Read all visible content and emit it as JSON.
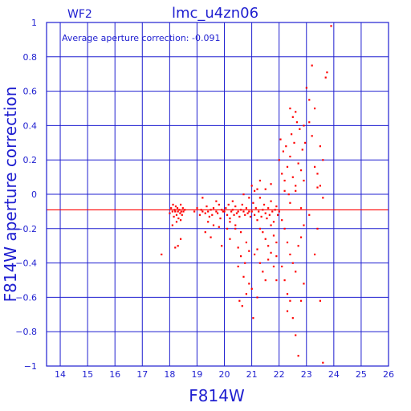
{
  "chart_data": {
    "type": "scatter",
    "title": "lmc_u4zn06",
    "panel_label": "WF2",
    "annotation": "Average aperture correction: -0.091",
    "xlabel": "F814W",
    "ylabel": "F814W aperture correction",
    "xlim": [
      13.5,
      26
    ],
    "ylim": [
      -1,
      1
    ],
    "x_ticks": [
      14,
      15,
      16,
      17,
      18,
      19,
      20,
      21,
      22,
      23,
      24,
      25,
      26
    ],
    "y_ticks": [
      -1,
      -0.8,
      -0.6,
      -0.4,
      -0.2,
      0,
      0.2,
      0.4,
      0.6,
      0.8,
      1
    ],
    "x_tick_labels": [
      "14",
      "15",
      "16",
      "17",
      "18",
      "19",
      "20",
      "21",
      "22",
      "23",
      "24",
      "25",
      "26"
    ],
    "y_tick_labels": [
      "−1",
      "−0.8",
      "−0.6",
      "−0.4",
      "−0.2",
      "0",
      "0.2",
      "0.4",
      "0.6",
      "0.8",
      "1"
    ],
    "average_correction": -0.091,
    "grid": true,
    "colors": {
      "axes": "#1f1fd0",
      "points": "#ff0000",
      "average_line": "#ff0000"
    },
    "series": [
      {
        "points": [
          [
            17.7,
            -0.35
          ],
          [
            18.0,
            -0.11
          ],
          [
            18.05,
            -0.08
          ],
          [
            18.1,
            -0.1
          ],
          [
            18.12,
            -0.06
          ],
          [
            18.15,
            -0.13
          ],
          [
            18.18,
            -0.09
          ],
          [
            18.2,
            -0.1
          ],
          [
            18.22,
            -0.07
          ],
          [
            18.25,
            -0.12
          ],
          [
            18.28,
            -0.08
          ],
          [
            18.3,
            -0.1
          ],
          [
            18.32,
            -0.14
          ],
          [
            18.35,
            -0.09
          ],
          [
            18.38,
            -0.11
          ],
          [
            18.4,
            -0.06
          ],
          [
            18.42,
            -0.1
          ],
          [
            18.45,
            -0.12
          ],
          [
            18.48,
            -0.08
          ],
          [
            18.5,
            -0.1
          ],
          [
            18.55,
            -0.09
          ],
          [
            18.1,
            -0.18
          ],
          [
            18.25,
            -0.16
          ],
          [
            18.4,
            -0.15
          ],
          [
            18.2,
            -0.31
          ],
          [
            18.3,
            -0.3
          ],
          [
            18.4,
            -0.26
          ],
          [
            18.9,
            -0.1
          ],
          [
            19.0,
            -0.08
          ],
          [
            19.1,
            -0.12
          ],
          [
            19.15,
            -0.09
          ],
          [
            19.2,
            -0.1
          ],
          [
            19.3,
            -0.11
          ],
          [
            19.35,
            -0.07
          ],
          [
            19.4,
            -0.1
          ],
          [
            19.45,
            -0.13
          ],
          [
            19.5,
            -0.09
          ],
          [
            19.55,
            -0.12
          ],
          [
            19.6,
            -0.08
          ],
          [
            19.7,
            -0.1
          ],
          [
            19.75,
            -0.11
          ],
          [
            19.8,
            -0.06
          ],
          [
            19.85,
            -0.14
          ],
          [
            19.9,
            -0.09
          ],
          [
            19.95,
            -0.1
          ],
          [
            19.2,
            -0.02
          ],
          [
            19.4,
            -0.16
          ],
          [
            19.6,
            -0.18
          ],
          [
            19.7,
            -0.04
          ],
          [
            19.8,
            -0.19
          ],
          [
            19.9,
            -0.3
          ],
          [
            19.3,
            -0.22
          ],
          [
            19.5,
            -0.25
          ],
          [
            20.0,
            -0.1
          ],
          [
            20.05,
            -0.08
          ],
          [
            20.1,
            -0.12
          ],
          [
            20.15,
            -0.06
          ],
          [
            20.2,
            -0.14
          ],
          [
            20.25,
            -0.1
          ],
          [
            20.3,
            -0.09
          ],
          [
            20.35,
            -0.12
          ],
          [
            20.4,
            -0.07
          ],
          [
            20.45,
            -0.11
          ],
          [
            20.5,
            -0.1
          ],
          [
            20.55,
            -0.13
          ],
          [
            20.6,
            -0.09
          ],
          [
            20.65,
            -0.06
          ],
          [
            20.7,
            -0.1
          ],
          [
            20.75,
            -0.12
          ],
          [
            20.8,
            -0.08
          ],
          [
            20.85,
            -0.11
          ],
          [
            20.9,
            -0.1
          ],
          [
            20.95,
            -0.13
          ],
          [
            20.1,
            -0.2
          ],
          [
            20.2,
            -0.26
          ],
          [
            20.3,
            -0.04
          ],
          [
            20.4,
            -0.2
          ],
          [
            20.5,
            -0.31
          ],
          [
            20.6,
            -0.22
          ],
          [
            20.7,
            0.0
          ],
          [
            20.8,
            -0.28
          ],
          [
            20.9,
            -0.02
          ],
          [
            20.6,
            -0.36
          ],
          [
            20.5,
            -0.42
          ],
          [
            20.7,
            -0.48
          ],
          [
            20.8,
            -0.58
          ],
          [
            20.55,
            -0.62
          ],
          [
            20.65,
            -0.65
          ],
          [
            20.9,
            -0.52
          ],
          [
            20.75,
            -0.4
          ],
          [
            20.4,
            -0.18
          ],
          [
            20.2,
            -0.16
          ],
          [
            20.9,
            -0.33
          ],
          [
            21.0,
            -0.1
          ],
          [
            21.05,
            -0.05
          ],
          [
            21.1,
            -0.12
          ],
          [
            21.15,
            -0.08
          ],
          [
            21.2,
            -0.15
          ],
          [
            21.25,
            -0.1
          ],
          [
            21.3,
            -0.02
          ],
          [
            21.35,
            -0.13
          ],
          [
            21.4,
            -0.09
          ],
          [
            21.45,
            -0.06
          ],
          [
            21.5,
            -0.11
          ],
          [
            21.55,
            -0.14
          ],
          [
            21.6,
            -0.08
          ],
          [
            21.65,
            -0.12
          ],
          [
            21.7,
            -0.04
          ],
          [
            21.75,
            -0.1
          ],
          [
            21.8,
            -0.16
          ],
          [
            21.85,
            -0.09
          ],
          [
            21.9,
            -0.07
          ],
          [
            21.95,
            -0.12
          ],
          [
            21.0,
            0.05
          ],
          [
            21.1,
            0.02
          ],
          [
            21.2,
            0.03
          ],
          [
            21.3,
            -0.2
          ],
          [
            21.4,
            -0.22
          ],
          [
            21.5,
            -0.26
          ],
          [
            21.6,
            -0.3
          ],
          [
            21.7,
            -0.18
          ],
          [
            21.8,
            -0.24
          ],
          [
            21.9,
            -0.28
          ],
          [
            21.1,
            -0.35
          ],
          [
            21.2,
            -0.32
          ],
          [
            21.3,
            -0.4
          ],
          [
            21.4,
            -0.45
          ],
          [
            21.5,
            -0.5
          ],
          [
            21.0,
            -0.55
          ],
          [
            21.05,
            -0.72
          ],
          [
            21.2,
            -0.6
          ],
          [
            21.6,
            -0.38
          ],
          [
            21.7,
            -0.34
          ],
          [
            21.8,
            -0.42
          ],
          [
            21.9,
            -0.5
          ],
          [
            21.3,
            0.08
          ],
          [
            21.5,
            0.03
          ],
          [
            21.7,
            0.06
          ],
          [
            21.9,
            -0.36
          ],
          [
            22.0,
            0.2
          ],
          [
            22.05,
            0.32
          ],
          [
            22.1,
            0.12
          ],
          [
            22.15,
            0.25
          ],
          [
            22.2,
            0.08
          ],
          [
            22.25,
            0.28
          ],
          [
            22.3,
            0.16
          ],
          [
            22.35,
            0.0
          ],
          [
            22.4,
            0.22
          ],
          [
            22.45,
            0.35
          ],
          [
            22.5,
            0.1
          ],
          [
            22.55,
            0.3
          ],
          [
            22.6,
            0.05
          ],
          [
            22.65,
            0.42
          ],
          [
            22.7,
            0.18
          ],
          [
            22.75,
            0.38
          ],
          [
            22.8,
            0.14
          ],
          [
            22.85,
            0.26
          ],
          [
            22.9,
            0.08
          ],
          [
            22.95,
            0.3
          ],
          [
            22.0,
            -0.1
          ],
          [
            22.1,
            -0.15
          ],
          [
            22.2,
            -0.2
          ],
          [
            22.3,
            -0.28
          ],
          [
            22.4,
            -0.35
          ],
          [
            22.5,
            -0.4
          ],
          [
            22.6,
            -0.45
          ],
          [
            22.7,
            -0.3
          ],
          [
            22.8,
            -0.25
          ],
          [
            22.9,
            -0.18
          ],
          [
            22.1,
            -0.42
          ],
          [
            22.2,
            -0.5
          ],
          [
            22.3,
            -0.58
          ],
          [
            22.4,
            -0.62
          ],
          [
            22.5,
            -0.72
          ],
          [
            22.6,
            -0.82
          ],
          [
            22.7,
            -0.94
          ],
          [
            22.8,
            -0.62
          ],
          [
            22.9,
            -0.52
          ],
          [
            22.3,
            -0.68
          ],
          [
            22.2,
            0.02
          ],
          [
            22.4,
            -0.05
          ],
          [
            22.6,
            0.02
          ],
          [
            22.8,
            -0.08
          ],
          [
            22.5,
            0.45
          ],
          [
            22.9,
            0.4
          ],
          [
            22.4,
            0.5
          ],
          [
            22.6,
            0.48
          ],
          [
            23.0,
            0.62
          ],
          [
            23.1,
            0.55
          ],
          [
            23.2,
            0.34
          ],
          [
            23.3,
            0.16
          ],
          [
            23.4,
            0.12
          ],
          [
            23.5,
            0.05
          ],
          [
            23.1,
            0.42
          ],
          [
            23.3,
            0.5
          ],
          [
            23.2,
            0.75
          ],
          [
            23.5,
            0.28
          ],
          [
            23.6,
            -0.02
          ],
          [
            23.4,
            -0.2
          ],
          [
            23.3,
            -0.35
          ],
          [
            23.5,
            -0.62
          ],
          [
            23.6,
            -0.98
          ],
          [
            23.1,
            -0.12
          ],
          [
            23.4,
            0.04
          ],
          [
            23.7,
            0.68
          ],
          [
            23.75,
            0.71
          ],
          [
            23.6,
            0.2
          ],
          [
            23.9,
            0.98
          ]
        ]
      }
    ]
  }
}
